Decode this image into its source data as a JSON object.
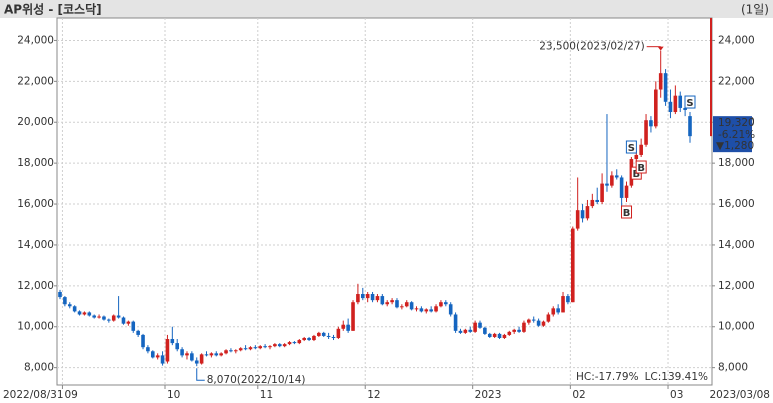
{
  "chart_data": {
    "type": "candlestick",
    "title": "AP위성 - [코스닥]",
    "period": "(1일)",
    "up_color": "#d0211f",
    "down_color": "#1565c0",
    "ylim": [
      7200,
      25000
    ],
    "yticks": [
      {
        "value": 8000,
        "label": "8,000"
      },
      {
        "value": 10000,
        "label": "10,000"
      },
      {
        "value": 12000,
        "label": "12,000"
      },
      {
        "value": 14000,
        "label": "14,000"
      },
      {
        "value": 16000,
        "label": "16,000"
      },
      {
        "value": 18000,
        "label": "18,000"
      },
      {
        "value": 20000,
        "label": "20,000"
      },
      {
        "value": 22000,
        "label": "22,000"
      },
      {
        "value": 24000,
        "label": "24,000"
      }
    ],
    "grid": true,
    "x_start_label": "2022/08/31",
    "x_end_label": "2023/03/08",
    "x_labels": [
      {
        "index": 1,
        "label": "09"
      },
      {
        "index": 22,
        "label": "10"
      },
      {
        "index": 41,
        "label": "11"
      },
      {
        "index": 63,
        "label": "12"
      },
      {
        "index": 85,
        "label": "2023"
      },
      {
        "index": 105,
        "label": "02"
      },
      {
        "index": 125,
        "label": "03"
      }
    ],
    "ohlc": [
      [
        11700,
        11800,
        11350,
        11450
      ],
      [
        11450,
        11500,
        11000,
        11100
      ],
      [
        11100,
        11200,
        10900,
        11000
      ],
      [
        11000,
        11050,
        10700,
        10750
      ],
      [
        10750,
        10800,
        10550,
        10600
      ],
      [
        10600,
        10750,
        10550,
        10700
      ],
      [
        10700,
        10750,
        10500,
        10550
      ],
      [
        10550,
        10600,
        10400,
        10450
      ],
      [
        10450,
        10600,
        10400,
        10500
      ],
      [
        10500,
        10550,
        10300,
        10350
      ],
      [
        10350,
        10400,
        10200,
        10300
      ],
      [
        10300,
        10600,
        10250,
        10550
      ],
      [
        10550,
        11500,
        10400,
        10450
      ],
      [
        10450,
        10500,
        10100,
        10150
      ],
      [
        10150,
        10300,
        10050,
        10250
      ],
      [
        10250,
        10300,
        9700,
        9800
      ],
      [
        9800,
        9850,
        9500,
        9600
      ],
      [
        9600,
        9650,
        8900,
        9000
      ],
      [
        9000,
        9100,
        8700,
        8800
      ],
      [
        8800,
        8850,
        8450,
        8500
      ],
      [
        8500,
        8700,
        8400,
        8600
      ],
      [
        8600,
        8800,
        8100,
        8200
      ],
      [
        8300,
        9600,
        8200,
        9400
      ],
      [
        9400,
        10000,
        9100,
        9200
      ],
      [
        9200,
        9400,
        8800,
        8900
      ],
      [
        8900,
        9000,
        8500,
        8600
      ],
      [
        8600,
        8800,
        8400,
        8700
      ],
      [
        8700,
        8800,
        8300,
        8350
      ],
      [
        8350,
        8500,
        8070,
        8200
      ],
      [
        8200,
        8700,
        8150,
        8650
      ],
      [
        8650,
        8800,
        8550,
        8600
      ],
      [
        8600,
        8750,
        8500,
        8700
      ],
      [
        8700,
        8800,
        8550,
        8600
      ],
      [
        8600,
        8750,
        8550,
        8700
      ],
      [
        8700,
        8900,
        8650,
        8850
      ],
      [
        8850,
        8950,
        8750,
        8800
      ],
      [
        8800,
        8900,
        8700,
        8850
      ],
      [
        8850,
        9000,
        8800,
        8950
      ],
      [
        8950,
        9100,
        8850,
        8900
      ],
      [
        8900,
        9050,
        8850,
        9000
      ],
      [
        9000,
        9100,
        8900,
        8950
      ],
      [
        8950,
        9100,
        8900,
        9050
      ],
      [
        9050,
        9150,
        8950,
        9000
      ],
      [
        9000,
        9100,
        8900,
        9050
      ],
      [
        9050,
        9200,
        9000,
        9150
      ],
      [
        9150,
        9200,
        9000,
        9050
      ],
      [
        9050,
        9200,
        9000,
        9150
      ],
      [
        9150,
        9300,
        9100,
        9250
      ],
      [
        9250,
        9300,
        9150,
        9200
      ],
      [
        9200,
        9400,
        9150,
        9350
      ],
      [
        9350,
        9500,
        9300,
        9450
      ],
      [
        9450,
        9500,
        9300,
        9350
      ],
      [
        9350,
        9600,
        9300,
        9550
      ],
      [
        9550,
        9750,
        9500,
        9700
      ],
      [
        9700,
        9750,
        9500,
        9550
      ],
      [
        9550,
        9700,
        9400,
        9500
      ],
      [
        9500,
        9600,
        9350,
        9450
      ],
      [
        9450,
        10000,
        9400,
        9900
      ],
      [
        9900,
        10300,
        9800,
        10100
      ],
      [
        10100,
        10400,
        9700,
        9800
      ],
      [
        9800,
        11300,
        9800,
        11200
      ],
      [
        11200,
        12100,
        11100,
        11600
      ],
      [
        11600,
        11900,
        11300,
        11400
      ],
      [
        11400,
        11700,
        11200,
        11600
      ],
      [
        11600,
        11700,
        11200,
        11300
      ],
      [
        11300,
        11600,
        11200,
        11500
      ],
      [
        11500,
        11600,
        11050,
        11100
      ],
      [
        11100,
        11300,
        11000,
        11200
      ],
      [
        11200,
        11400,
        11100,
        11300
      ],
      [
        11300,
        11400,
        10900,
        10950
      ],
      [
        10950,
        11100,
        10850,
        11000
      ],
      [
        11000,
        11300,
        10950,
        11200
      ],
      [
        11200,
        11250,
        10800,
        10850
      ],
      [
        10850,
        11000,
        10750,
        10900
      ],
      [
        10900,
        11000,
        10700,
        10750
      ],
      [
        10750,
        10900,
        10650,
        10850
      ],
      [
        10850,
        11000,
        10700,
        10750
      ],
      [
        10750,
        11100,
        10700,
        11000
      ],
      [
        11000,
        11300,
        10950,
        11200
      ],
      [
        11200,
        11300,
        11000,
        11100
      ],
      [
        11100,
        11200,
        10500,
        10600
      ],
      [
        10600,
        10700,
        9700,
        9800
      ],
      [
        9800,
        9900,
        9650,
        9700
      ],
      [
        9700,
        9900,
        9650,
        9850
      ],
      [
        9850,
        10000,
        9700,
        9750
      ],
      [
        9750,
        10300,
        9700,
        10200
      ],
      [
        10200,
        10300,
        9900,
        9950
      ],
      [
        9950,
        10000,
        9600,
        9650
      ],
      [
        9650,
        9700,
        9450,
        9500
      ],
      [
        9500,
        9700,
        9450,
        9650
      ],
      [
        9650,
        9700,
        9400,
        9450
      ],
      [
        9450,
        9650,
        9400,
        9600
      ],
      [
        9600,
        9800,
        9550,
        9750
      ],
      [
        9750,
        9900,
        9650,
        9850
      ],
      [
        9850,
        10000,
        9700,
        9750
      ],
      [
        9750,
        10300,
        9700,
        10200
      ],
      [
        10200,
        10400,
        10100,
        10350
      ],
      [
        10350,
        10500,
        10200,
        10300
      ],
      [
        10300,
        10400,
        10000,
        10050
      ],
      [
        10050,
        10300,
        10000,
        10250
      ],
      [
        10250,
        10700,
        10200,
        10600
      ],
      [
        10600,
        11000,
        10500,
        10900
      ],
      [
        10900,
        11100,
        10600,
        10700
      ],
      [
        10700,
        11700,
        10700,
        11500
      ],
      [
        11500,
        11600,
        11100,
        11200
      ],
      [
        11200,
        14900,
        11200,
        14800
      ],
      [
        14800,
        17300,
        14700,
        15700
      ],
      [
        15700,
        16000,
        15100,
        15300
      ],
      [
        15300,
        16200,
        15200,
        15900
      ],
      [
        15900,
        16500,
        15800,
        16200
      ],
      [
        16200,
        16800,
        16000,
        16100
      ],
      [
        16100,
        17500,
        16000,
        17000
      ],
      [
        17000,
        20400,
        16600,
        16900
      ],
      [
        16900,
        17600,
        16800,
        17400
      ],
      [
        17400,
        17700,
        17200,
        17300
      ],
      [
        17300,
        17400,
        15600,
        16300
      ],
      [
        16300,
        17100,
        16100,
        16900
      ],
      [
        16900,
        18300,
        16800,
        18200
      ],
      [
        18200,
        18600,
        18000,
        18400
      ],
      [
        18400,
        19200,
        18300,
        18900
      ],
      [
        18900,
        20400,
        18800,
        20100
      ],
      [
        20100,
        20300,
        19500,
        19800
      ],
      [
        19800,
        22000,
        19700,
        21600
      ],
      [
        21600,
        23500,
        21200,
        22400
      ],
      [
        22400,
        22600,
        20800,
        21000
      ],
      [
        21000,
        21600,
        20200,
        20500
      ],
      [
        20500,
        21800,
        20400,
        21300
      ],
      [
        21300,
        21500,
        20500,
        20700
      ],
      [
        20700,
        21200,
        20300,
        20600
      ],
      [
        20300,
        20500,
        19000,
        19320
      ]
    ],
    "signals": [
      {
        "index": 116,
        "label": "B"
      },
      {
        "index": 118,
        "label": "B"
      },
      {
        "index": 117,
        "label": "S"
      },
      {
        "index": 119,
        "label": "B"
      },
      {
        "index": 129,
        "label": "S"
      }
    ],
    "high_annotation": {
      "index": 123,
      "text": "23,500(2023/02/27)"
    },
    "low_annotation": {
      "index": 28,
      "text": "8,070(2022/10/14)"
    },
    "current": {
      "price": 19320,
      "price_label": "19,320",
      "change_pct": "-6.21%",
      "change": "▼1,280"
    },
    "hc_text": "HC:-17.79%",
    "lc_text": "LC:139.41%"
  }
}
